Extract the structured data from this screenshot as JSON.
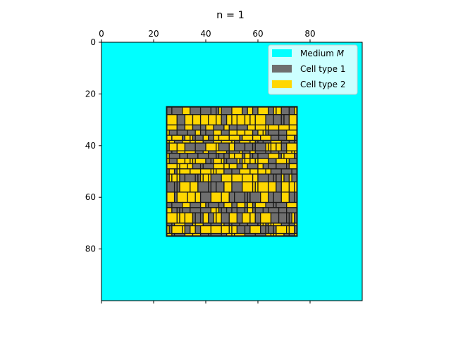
{
  "chart_data": {
    "type": "heatmap",
    "title": "n = 1",
    "xlabel": "",
    "ylabel": "",
    "xlim": [
      0,
      100
    ],
    "ylim": [
      0,
      100
    ],
    "y_inverted": true,
    "x_ticks_position": "top",
    "xticks": [
      "0",
      "20",
      "40",
      "60",
      "80"
    ],
    "yticks": [
      "0",
      "20",
      "40",
      "60",
      "80"
    ],
    "grid": false,
    "legend": {
      "placement": "top-right",
      "entries": [
        {
          "label": "Medium ",
          "label_math": "M",
          "color": "#00FFFF"
        },
        {
          "label": "Cell type 1",
          "color": "#6E6E6E"
        },
        {
          "label": "Cell type 2",
          "color": "#FFD700"
        }
      ]
    },
    "regions": [
      {
        "name": "Medium M",
        "x": [
          0,
          100
        ],
        "y": [
          0,
          100
        ],
        "color": "#00FFFF"
      },
      {
        "name": "cell cluster",
        "x": [
          25,
          75
        ],
        "y": [
          25,
          75
        ],
        "types": [
          "Cell type 1",
          "Cell type 2"
        ]
      }
    ],
    "cell_type_fraction": {
      "Cell type 1": 0.5,
      "Cell type 2": 0.5
    }
  },
  "colors": {
    "medium": "#00FFFF",
    "cell_type_1": "#6E6E6E",
    "cell_type_2": "#FFD700",
    "border": "#1a1a1a"
  }
}
